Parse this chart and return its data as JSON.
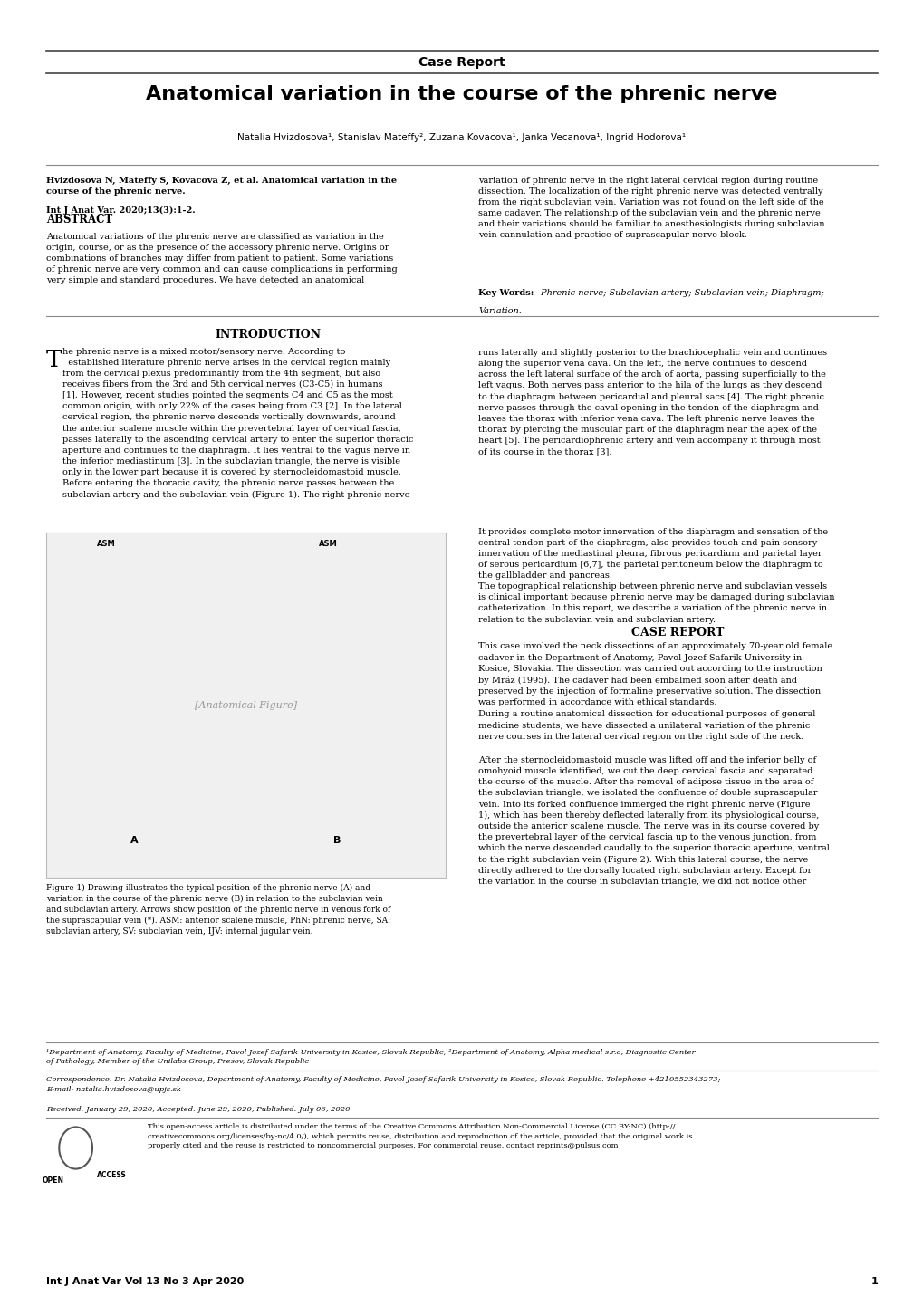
{
  "page_width": 10.2,
  "page_height": 14.42,
  "bg_color": "#ffffff",
  "header_label": "Case Report",
  "title": "Anatomical variation in the course of the phrenic nerve",
  "authors": "Natalia Hvizdosova¹, Stanislav Mateffy², Zuzana Kovacova¹, Janka Vecanova¹, Ingrid Hodorova¹",
  "abstract_title": "ABSTRACT",
  "intro_title": "INTRODUCTION",
  "case_title": "CASE REPORT",
  "keywords_label": "Key Words:",
  "keywords_italic": " Phrenic nerve; Subclavian artery; Subclavian vein; Diaphragm; Variation.",
  "footnote1": "¹Department of Anatomy, Faculty of Medicine, Pavol Jozef Safarik University in Kosice, Slovak Republic; ²Department of Anatomy, Alpha medical s.r.o, Diagnostic Center of Pathology, Member of the Unilabs Group, Presov, Slovak Republic",
  "correspondence_line1": "Correspondence: Dr. Natalia Hvizdosova, Department of Anatomy, Faculty of Medicine, Pavol Jozef Safarik University in Kosice, Slovak Republic. Telephone +4210552343273;",
  "correspondence_line2": "E-mail: natalia.hvizdosova@upjs.sk",
  "received": "Received: January 29, 2020, Accepted: June 29, 2020, Published: July 06, 2020",
  "open_access_text_line1": "This open-access article is distributed under the terms of the Creative Commons Attribution Non-Commercial License (CC BY-NC) (http://",
  "open_access_text_line2": "creativecommons.org/licenses/by-nc/4.0/), which permits reuse, distribution and reproduction of the article, provided that the original work is",
  "open_access_text_line3": "properly cited and the reuse is restricted to noncommercial purposes. For commercial reuse, contact reprints@pulsus.com",
  "journal_footer": "Int J Anat Var Vol 13 No 3 Apr 2020",
  "page_number": "1",
  "lm": 0.05,
  "rm": 0.95,
  "col_mid_r": 0.482,
  "col_mid_l": 0.518
}
